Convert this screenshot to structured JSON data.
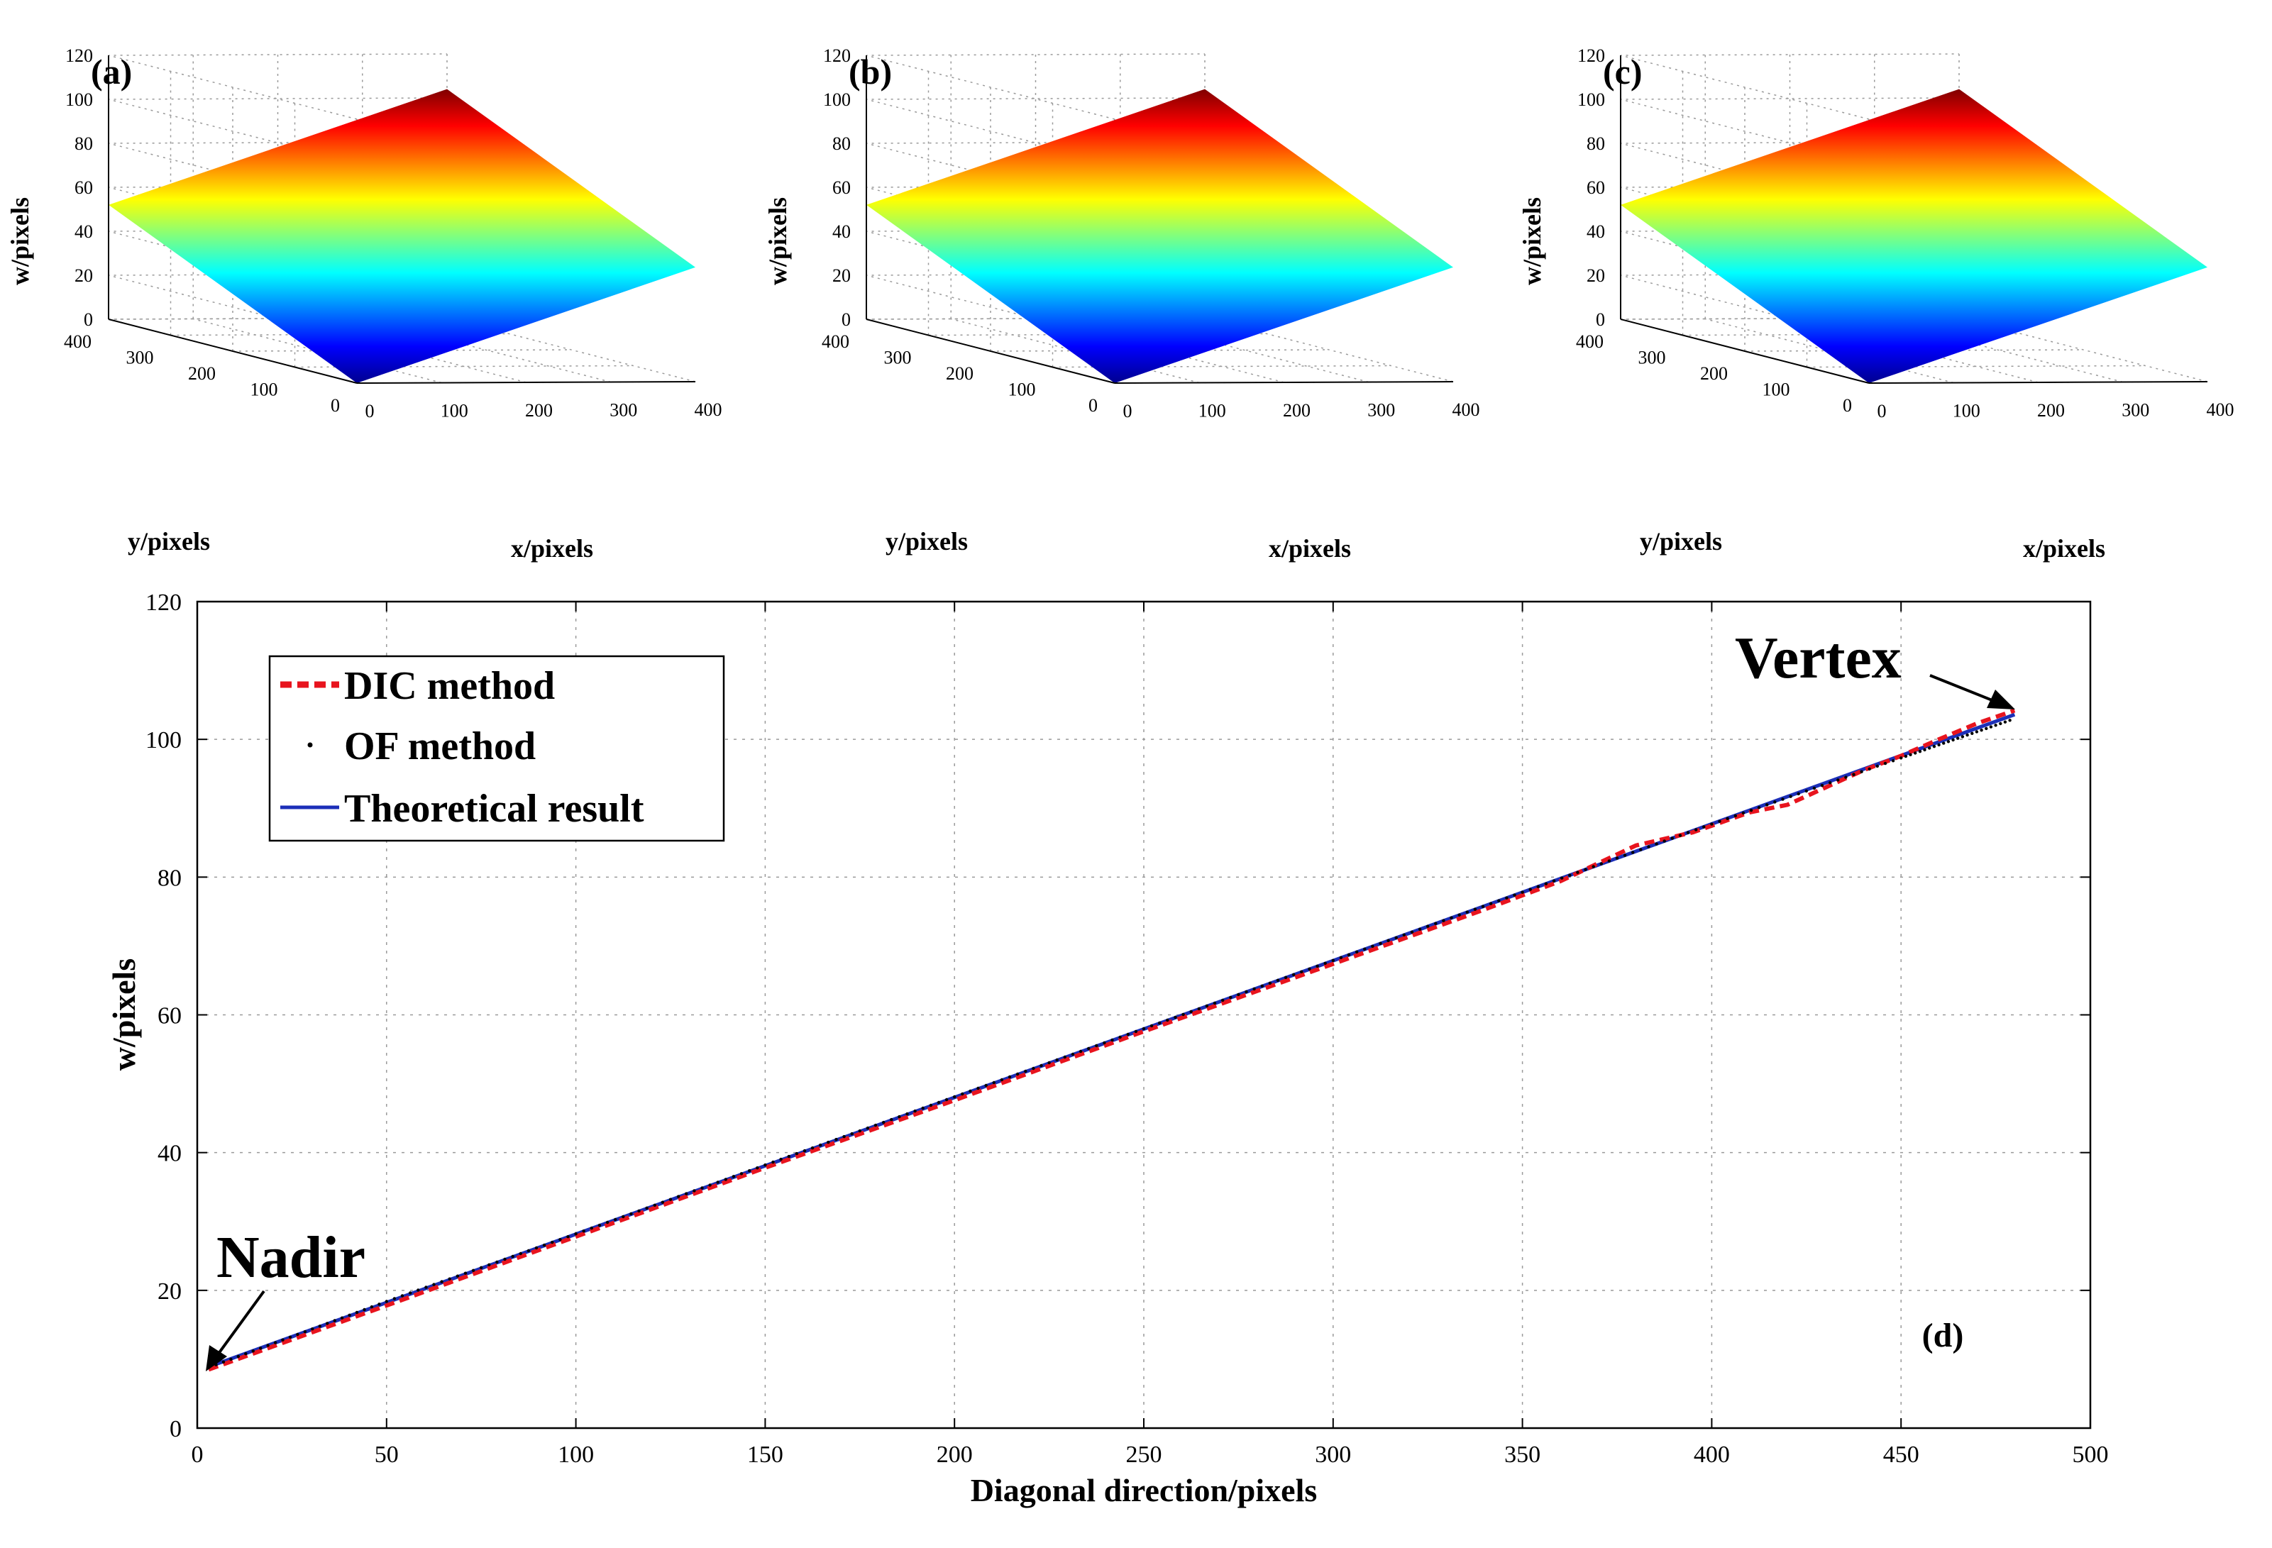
{
  "figure": {
    "colors": {
      "axis": "#000000",
      "grid": "#9a9a9a",
      "dic": "#e8141e",
      "of": "#000000",
      "theory": "#1c2fb8"
    }
  },
  "chart_data": [
    {
      "type": "surface",
      "panel_label": "(a)",
      "title": "",
      "xlabel": "x/pixels",
      "ylabel": "y/pixels",
      "zlabel": "w/pixels",
      "xlim": [
        0,
        400
      ],
      "ylim": [
        0,
        400
      ],
      "zlim": [
        0,
        120
      ],
      "xticks": [
        "0",
        "100",
        "200",
        "300",
        "400"
      ],
      "yticks": [
        "0",
        "100",
        "200",
        "300",
        "400"
      ],
      "zticks": [
        "0",
        "20",
        "40",
        "60",
        "80",
        "100",
        "120"
      ],
      "corner_w": {
        "x0_y0": 0,
        "x400_y0": 52,
        "x0_y400": 52,
        "x400_y400": 104
      },
      "colormap": "jet",
      "surface": "inclined plane, slightly noisy near the peak"
    },
    {
      "type": "surface",
      "panel_label": "(b)",
      "title": "",
      "xlabel": "x/pixels",
      "ylabel": "y/pixels",
      "zlabel": "w/pixels",
      "xlim": [
        0,
        400
      ],
      "ylim": [
        0,
        400
      ],
      "zlim": [
        0,
        120
      ],
      "xticks": [
        "0",
        "100",
        "200",
        "300",
        "400"
      ],
      "yticks": [
        "0",
        "100",
        "200",
        "300",
        "400"
      ],
      "zticks": [
        "0",
        "20",
        "40",
        "60",
        "80",
        "100",
        "120"
      ],
      "corner_w": {
        "x0_y0": 0,
        "x400_y0": 52,
        "x0_y400": 52,
        "x400_y400": 104
      },
      "colormap": "jet",
      "surface": "inclined plane"
    },
    {
      "type": "surface",
      "panel_label": "(c)",
      "title": "",
      "xlabel": "x/pixels",
      "ylabel": "y/pixels",
      "zlabel": "w/pixels",
      "xlim": [
        0,
        400
      ],
      "ylim": [
        0,
        400
      ],
      "zlim": [
        0,
        120
      ],
      "xticks": [
        "0",
        "100",
        "200",
        "300",
        "400"
      ],
      "yticks": [
        "0",
        "100",
        "200",
        "300",
        "400"
      ],
      "zticks": [
        "0",
        "20",
        "40",
        "60",
        "80",
        "100",
        "120"
      ],
      "corner_w": {
        "x0_y0": 0,
        "x400_y0": 52,
        "x0_y400": 52,
        "x400_y400": 104
      },
      "colormap": "jet",
      "surface": "inclined plane (theoretical)"
    },
    {
      "type": "line",
      "panel_label": "(d)",
      "title": "",
      "xlabel": "Diagonal direction/pixels",
      "ylabel": "w/pixels",
      "xlim": [
        0,
        500
      ],
      "ylim": [
        0,
        120
      ],
      "xticks": [
        0,
        50,
        100,
        150,
        200,
        250,
        300,
        350,
        400,
        450,
        500
      ],
      "yticks": [
        0,
        20,
        40,
        60,
        80,
        100,
        120
      ],
      "legend_position": "top-left",
      "series": [
        {
          "name": "DIC method",
          "style": "dashed",
          "x": [
            3,
            50,
            100,
            150,
            200,
            250,
            300,
            340,
            360,
            370,
            380,
            395,
            410,
            420,
            430,
            440,
            450,
            460,
            470,
            480
          ],
          "y": [
            8.5,
            17.8,
            27.8,
            37.8,
            47.6,
            57.6,
            67.4,
            75.3,
            79.4,
            82.0,
            84.6,
            86.5,
            89.4,
            90.5,
            93.0,
            95.5,
            97.6,
            100.0,
            102.3,
            104.2
          ]
        },
        {
          "name": "OF method",
          "style": "dotted",
          "x": [
            3,
            50,
            100,
            150,
            200,
            250,
            300,
            350,
            400,
            450,
            480
          ],
          "y": [
            8.8,
            18.4,
            28.2,
            38.2,
            48.1,
            58.0,
            67.9,
            77.8,
            87.7,
            97.3,
            103.0
          ]
        },
        {
          "name": "Theoretical result",
          "style": "solid",
          "x": [
            3,
            480
          ],
          "y": [
            8.9,
            103.6
          ]
        }
      ],
      "annotations": [
        {
          "text": "Vertex",
          "x": 480,
          "y": 104
        },
        {
          "text": "Nadir",
          "x": 3,
          "y": 8.5
        }
      ]
    }
  ]
}
